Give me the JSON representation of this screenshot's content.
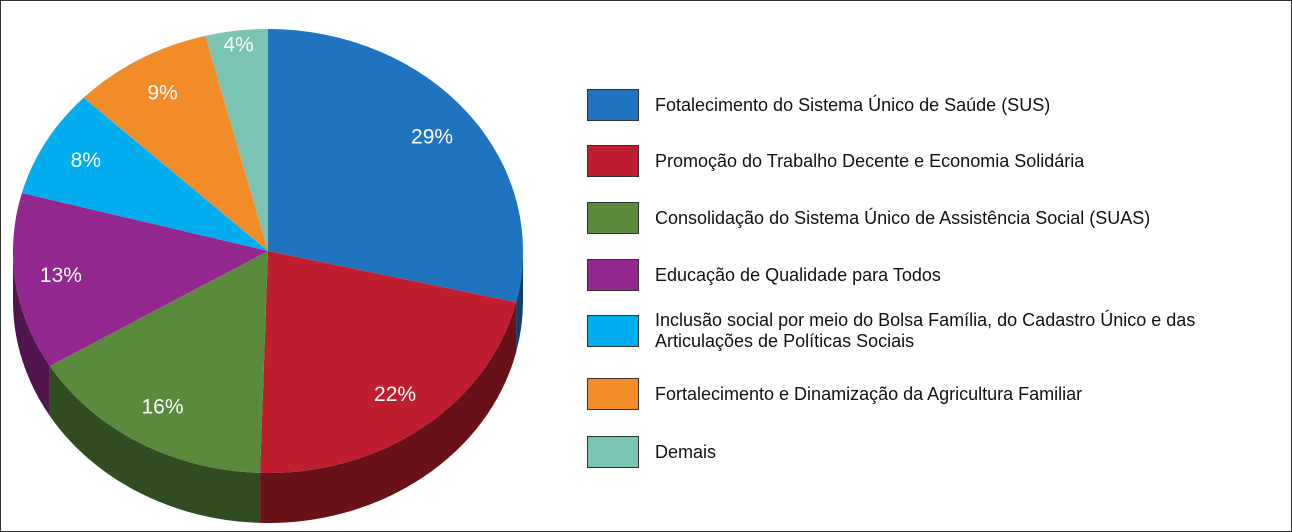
{
  "chart_data": {
    "type": "pie",
    "categories": [
      "Fotalecimento do Sistema Único de Saúde (SUS)",
      "Promoção do Trabalho Decente e Economia Solidária",
      "Consolidação do Sistema Único de Assistência Social (SUAS)",
      "Educação de Qualidade para Todos",
      "Inclusão social por meio do Bolsa Família, do Cadastro Único e das Articulações de Políticas Sociais",
      "Fortalecimento e Dinamização da Agricultura Familiar",
      "Demais"
    ],
    "values": [
      29,
      22,
      16,
      13,
      8,
      9,
      4
    ],
    "value_labels": [
      "29%",
      "22%",
      "16%",
      "13%",
      "8%",
      "9%",
      "4%"
    ],
    "colors": [
      "#1f73bf",
      "#be1e2d",
      "#5a8a3c",
      "#92278f",
      "#00aeef",
      "#f28c28",
      "#7bc4b4"
    ]
  }
}
